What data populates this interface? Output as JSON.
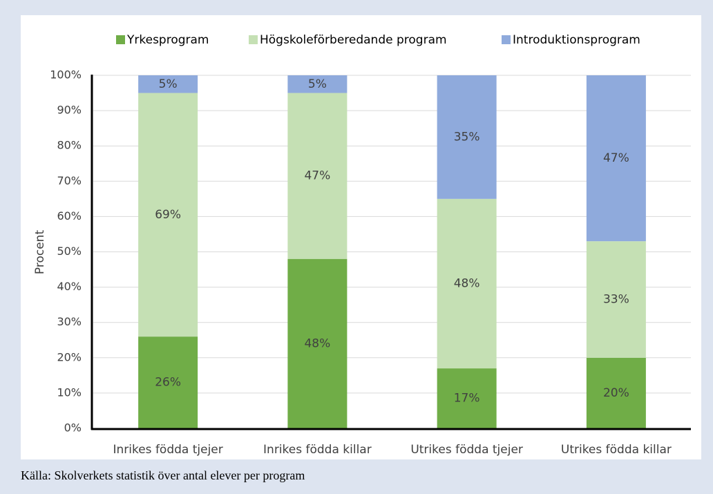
{
  "chart_data": {
    "type": "stacked_bar",
    "categories": [
      "Inrikes födda tjejer",
      "Inrikes födda killar",
      "Utrikes födda tjejer",
      "Utrikes födda killar"
    ],
    "series": [
      {
        "name": "Yrkesprogram",
        "color": "#70ad47",
        "values": [
          26,
          48,
          17,
          20
        ],
        "value_labels": [
          "26%",
          "48%",
          "17%",
          "20%"
        ]
      },
      {
        "name": "Högskoleförberedande program",
        "color": "#c5e0b4",
        "values": [
          69,
          47,
          48,
          33
        ],
        "value_labels": [
          "69%",
          "47%",
          "48%",
          "33%"
        ]
      },
      {
        "name": "Introduktionsprogram",
        "color": "#8faadc",
        "values": [
          5,
          5,
          35,
          47
        ],
        "value_labels": [
          "5%",
          "5%",
          "35%",
          "47%"
        ]
      }
    ],
    "ylabel": "Procent",
    "ylim": [
      0,
      100
    ],
    "yticks": [
      {
        "value": 0,
        "label": "0%"
      },
      {
        "value": 10,
        "label": "10%"
      },
      {
        "value": 20,
        "label": "20%"
      },
      {
        "value": 30,
        "label": "30%"
      },
      {
        "value": 40,
        "label": "40%"
      },
      {
        "value": 50,
        "label": "50%"
      },
      {
        "value": 60,
        "label": "60%"
      },
      {
        "value": 70,
        "label": "70%"
      },
      {
        "value": 80,
        "label": "80%"
      },
      {
        "value": 90,
        "label": "90%"
      },
      {
        "value": 100,
        "label": "100%"
      }
    ],
    "grid": true,
    "legend": "top"
  },
  "source": "Källa: Skolverkets statistik över antal elever per program"
}
